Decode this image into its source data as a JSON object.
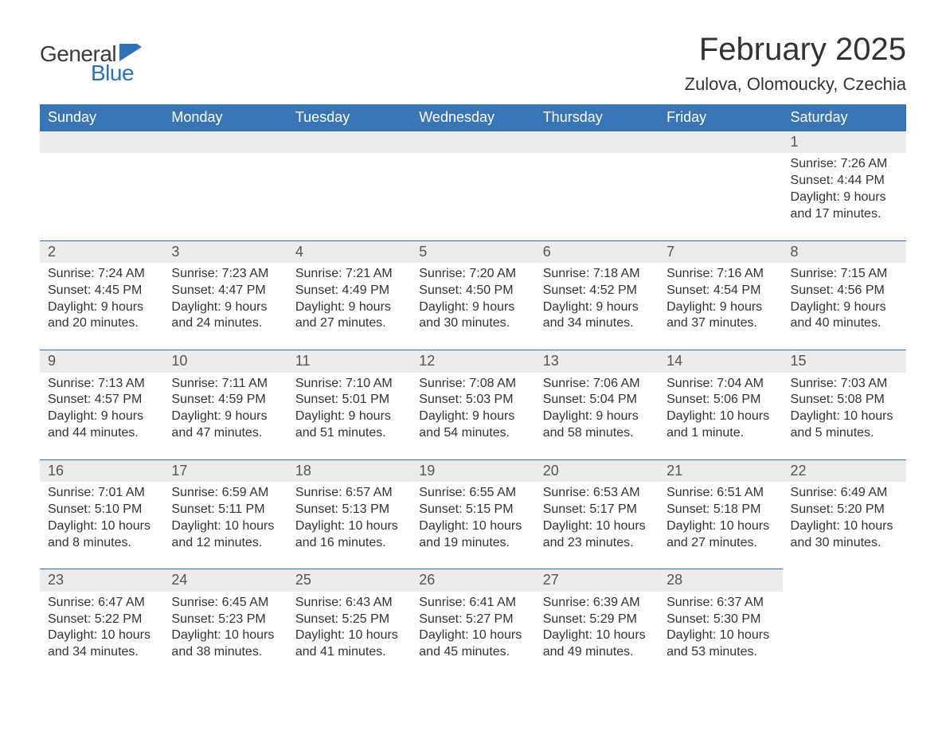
{
  "logo": {
    "text_general": "General",
    "text_blue": "Blue",
    "flag_color": "#2d71b8",
    "text_gray": "#3b3b3b"
  },
  "title": "February 2025",
  "location": "Zulova, Olomoucky, Czechia",
  "colors": {
    "header_bg": "#3a76b6",
    "header_text": "#ffffff",
    "daybar_bg": "#ececec",
    "daybar_border": "#2d71b8",
    "body_text": "#333333",
    "page_bg": "#ffffff"
  },
  "typography": {
    "title_fontsize": 40,
    "location_fontsize": 22,
    "weekday_fontsize": 18,
    "daynum_fontsize": 18,
    "body_fontsize": 16,
    "font_family": "Arial"
  },
  "layout": {
    "columns": 7,
    "rows": 5,
    "first_day_column_index": 6
  },
  "weekdays": [
    "Sunday",
    "Monday",
    "Tuesday",
    "Wednesday",
    "Thursday",
    "Friday",
    "Saturday"
  ],
  "days": [
    {
      "n": 1,
      "sunrise": "7:26 AM",
      "sunset": "4:44 PM",
      "daylight": "9 hours and 17 minutes."
    },
    {
      "n": 2,
      "sunrise": "7:24 AM",
      "sunset": "4:45 PM",
      "daylight": "9 hours and 20 minutes."
    },
    {
      "n": 3,
      "sunrise": "7:23 AM",
      "sunset": "4:47 PM",
      "daylight": "9 hours and 24 minutes."
    },
    {
      "n": 4,
      "sunrise": "7:21 AM",
      "sunset": "4:49 PM",
      "daylight": "9 hours and 27 minutes."
    },
    {
      "n": 5,
      "sunrise": "7:20 AM",
      "sunset": "4:50 PM",
      "daylight": "9 hours and 30 minutes."
    },
    {
      "n": 6,
      "sunrise": "7:18 AM",
      "sunset": "4:52 PM",
      "daylight": "9 hours and 34 minutes."
    },
    {
      "n": 7,
      "sunrise": "7:16 AM",
      "sunset": "4:54 PM",
      "daylight": "9 hours and 37 minutes."
    },
    {
      "n": 8,
      "sunrise": "7:15 AM",
      "sunset": "4:56 PM",
      "daylight": "9 hours and 40 minutes."
    },
    {
      "n": 9,
      "sunrise": "7:13 AM",
      "sunset": "4:57 PM",
      "daylight": "9 hours and 44 minutes."
    },
    {
      "n": 10,
      "sunrise": "7:11 AM",
      "sunset": "4:59 PM",
      "daylight": "9 hours and 47 minutes."
    },
    {
      "n": 11,
      "sunrise": "7:10 AM",
      "sunset": "5:01 PM",
      "daylight": "9 hours and 51 minutes."
    },
    {
      "n": 12,
      "sunrise": "7:08 AM",
      "sunset": "5:03 PM",
      "daylight": "9 hours and 54 minutes."
    },
    {
      "n": 13,
      "sunrise": "7:06 AM",
      "sunset": "5:04 PM",
      "daylight": "9 hours and 58 minutes."
    },
    {
      "n": 14,
      "sunrise": "7:04 AM",
      "sunset": "5:06 PM",
      "daylight": "10 hours and 1 minute."
    },
    {
      "n": 15,
      "sunrise": "7:03 AM",
      "sunset": "5:08 PM",
      "daylight": "10 hours and 5 minutes."
    },
    {
      "n": 16,
      "sunrise": "7:01 AM",
      "sunset": "5:10 PM",
      "daylight": "10 hours and 8 minutes."
    },
    {
      "n": 17,
      "sunrise": "6:59 AM",
      "sunset": "5:11 PM",
      "daylight": "10 hours and 12 minutes."
    },
    {
      "n": 18,
      "sunrise": "6:57 AM",
      "sunset": "5:13 PM",
      "daylight": "10 hours and 16 minutes."
    },
    {
      "n": 19,
      "sunrise": "6:55 AM",
      "sunset": "5:15 PM",
      "daylight": "10 hours and 19 minutes."
    },
    {
      "n": 20,
      "sunrise": "6:53 AM",
      "sunset": "5:17 PM",
      "daylight": "10 hours and 23 minutes."
    },
    {
      "n": 21,
      "sunrise": "6:51 AM",
      "sunset": "5:18 PM",
      "daylight": "10 hours and 27 minutes."
    },
    {
      "n": 22,
      "sunrise": "6:49 AM",
      "sunset": "5:20 PM",
      "daylight": "10 hours and 30 minutes."
    },
    {
      "n": 23,
      "sunrise": "6:47 AM",
      "sunset": "5:22 PM",
      "daylight": "10 hours and 34 minutes."
    },
    {
      "n": 24,
      "sunrise": "6:45 AM",
      "sunset": "5:23 PM",
      "daylight": "10 hours and 38 minutes."
    },
    {
      "n": 25,
      "sunrise": "6:43 AM",
      "sunset": "5:25 PM",
      "daylight": "10 hours and 41 minutes."
    },
    {
      "n": 26,
      "sunrise": "6:41 AM",
      "sunset": "5:27 PM",
      "daylight": "10 hours and 45 minutes."
    },
    {
      "n": 27,
      "sunrise": "6:39 AM",
      "sunset": "5:29 PM",
      "daylight": "10 hours and 49 minutes."
    },
    {
      "n": 28,
      "sunrise": "6:37 AM",
      "sunset": "5:30 PM",
      "daylight": "10 hours and 53 minutes."
    }
  ],
  "labels": {
    "sunrise": "Sunrise: ",
    "sunset": "Sunset: ",
    "daylight": "Daylight: "
  }
}
